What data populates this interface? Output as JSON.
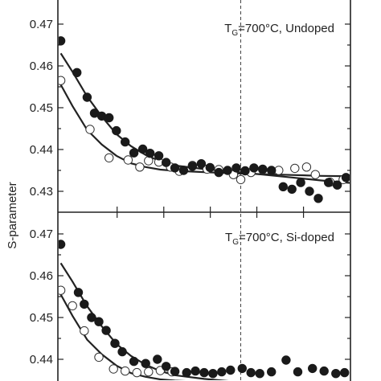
{
  "chart_data": [
    {
      "type": "scatter",
      "panel": "top",
      "annotation": {
        "prefix": "T",
        "sub": "G",
        "suffix": "=700°C, Undoped"
      },
      "ylabel": "S-parameter",
      "ylim": [
        0.425,
        0.4735
      ],
      "yticks": [
        "0.43",
        "0.44",
        "0.45",
        "0.46",
        "0.47"
      ],
      "yticks_values": [
        0.43,
        0.44,
        0.45,
        0.46,
        0.47
      ],
      "xlim": [
        0,
        20
      ],
      "x_minor_ticks": [
        4.05,
        7.24,
        10.42,
        13.6,
        16.79
      ],
      "vline_x": 12.5,
      "series": [
        {
          "marker": "open",
          "points": [
            [
              0.2,
              0.4565
            ],
            [
              2.2,
              0.4448
            ],
            [
              3.5,
              0.438
            ],
            [
              4.8,
              0.4375
            ],
            [
              5.6,
              0.4358
            ],
            [
              6.2,
              0.4373
            ],
            [
              6.9,
              0.437
            ],
            [
              7.7,
              0.4358
            ],
            [
              8.3,
              0.4348
            ],
            [
              9.2,
              0.4362
            ],
            [
              10.2,
              0.4353
            ],
            [
              11.0,
              0.4352
            ],
            [
              12.0,
              0.434
            ],
            [
              12.5,
              0.4328
            ],
            [
              13.2,
              0.4345
            ],
            [
              14.0,
              0.4352
            ],
            [
              15.1,
              0.435
            ],
            [
              16.2,
              0.4355
            ],
            [
              17.0,
              0.4358
            ],
            [
              17.6,
              0.434
            ],
            [
              18.6,
              0.4322
            ],
            [
              19.5,
              0.4328
            ]
          ],
          "fit": [
            [
              0.2,
              0.4555
            ],
            [
              1,
              0.4504
            ],
            [
              2,
              0.4447
            ],
            [
              3,
              0.4412
            ],
            [
              4,
              0.4385
            ],
            [
              5,
              0.4367
            ],
            [
              6,
              0.4358
            ],
            [
              7,
              0.4352
            ],
            [
              8,
              0.4349
            ],
            [
              10,
              0.4346
            ],
            [
              12,
              0.4343
            ],
            [
              14,
              0.4341
            ],
            [
              16,
              0.4339
            ],
            [
              18,
              0.4337
            ],
            [
              20,
              0.4336
            ]
          ]
        },
        {
          "marker": "filled",
          "points": [
            [
              0.2,
              0.466
            ],
            [
              1.3,
              0.4584
            ],
            [
              2.0,
              0.4525
            ],
            [
              2.5,
              0.4487
            ],
            [
              3.0,
              0.448
            ],
            [
              3.5,
              0.4476
            ],
            [
              4.0,
              0.4445
            ],
            [
              4.6,
              0.4418
            ],
            [
              5.2,
              0.4392
            ],
            [
              5.8,
              0.4401
            ],
            [
              6.3,
              0.4391
            ],
            [
              6.9,
              0.4385
            ],
            [
              7.4,
              0.4369
            ],
            [
              8.0,
              0.4356
            ],
            [
              8.6,
              0.435
            ],
            [
              9.2,
              0.436
            ],
            [
              9.8,
              0.4366
            ],
            [
              10.4,
              0.4357
            ],
            [
              11.0,
              0.4345
            ],
            [
              11.6,
              0.435
            ],
            [
              12.2,
              0.4356
            ],
            [
              12.8,
              0.4349
            ],
            [
              13.4,
              0.4356
            ],
            [
              14.0,
              0.4353
            ],
            [
              14.6,
              0.435
            ],
            [
              15.4,
              0.4311
            ],
            [
              16.0,
              0.4305
            ],
            [
              16.6,
              0.4321
            ],
            [
              17.2,
              0.43
            ],
            [
              17.8,
              0.4283
            ],
            [
              18.5,
              0.4321
            ],
            [
              19.1,
              0.4315
            ],
            [
              19.7,
              0.4333
            ]
          ],
          "fit": [
            [
              0.2,
              0.463
            ],
            [
              1,
              0.4586
            ],
            [
              2,
              0.4527
            ],
            [
              3,
              0.4479
            ],
            [
              4,
              0.4437
            ],
            [
              5,
              0.4408
            ],
            [
              6,
              0.4387
            ],
            [
              7,
              0.4372
            ],
            [
              8,
              0.4362
            ],
            [
              10,
              0.4353
            ],
            [
              12,
              0.4347
            ],
            [
              14,
              0.434
            ],
            [
              16,
              0.4333
            ],
            [
              18,
              0.4326
            ],
            [
              20,
              0.432
            ]
          ]
        }
      ]
    },
    {
      "type": "scatter",
      "panel": "bottom",
      "annotation": {
        "prefix": "T",
        "sub": "G",
        "suffix": "=700°C, Si-doped"
      },
      "ylim": [
        0.4325,
        0.4735
      ],
      "yticks": [
        "0.44",
        "0.45",
        "0.46",
        "0.47"
      ],
      "yticks_values": [
        0.44,
        0.45,
        0.46,
        0.47
      ],
      "xlim": [
        0,
        20
      ],
      "x_minor_ticks": [
        4.05,
        7.24,
        10.42,
        13.6,
        16.79
      ],
      "vline_x": 12.5,
      "series": [
        {
          "marker": "open",
          "points": [
            [
              0.2,
              0.4565
            ],
            [
              1.0,
              0.4528
            ],
            [
              1.8,
              0.4468
            ],
            [
              2.8,
              0.4405
            ],
            [
              3.8,
              0.4377
            ],
            [
              4.6,
              0.4372
            ],
            [
              5.4,
              0.4368
            ],
            [
              6.2,
              0.437
            ],
            [
              7.0,
              0.4373
            ],
            [
              7.8,
              0.437
            ]
          ],
          "fit": [
            [
              0.2,
              0.4555
            ],
            [
              1,
              0.4504
            ],
            [
              2,
              0.4447
            ],
            [
              3,
              0.4412
            ],
            [
              4,
              0.4385
            ],
            [
              5,
              0.4367
            ],
            [
              6,
              0.4358
            ],
            [
              7,
              0.4352
            ],
            [
              8,
              0.4349
            ],
            [
              10,
              0.4346
            ],
            [
              12,
              0.4343
            ],
            [
              14,
              0.4341
            ],
            [
              16,
              0.4339
            ],
            [
              18,
              0.4337
            ],
            [
              20,
              0.4336
            ]
          ]
        },
        {
          "marker": "filled",
          "points": [
            [
              0.2,
              0.4675
            ],
            [
              1.4,
              0.456
            ],
            [
              1.8,
              0.4532
            ],
            [
              2.3,
              0.45
            ],
            [
              2.8,
              0.449
            ],
            [
              3.3,
              0.4469
            ],
            [
              3.9,
              0.4438
            ],
            [
              4.4,
              0.4418
            ],
            [
              5.2,
              0.4395
            ],
            [
              6.0,
              0.439
            ],
            [
              6.8,
              0.44
            ],
            [
              7.4,
              0.4383
            ],
            [
              8.0,
              0.4371
            ],
            [
              8.8,
              0.4368
            ],
            [
              9.4,
              0.4372
            ],
            [
              10.0,
              0.4368
            ],
            [
              10.6,
              0.4366
            ],
            [
              11.2,
              0.437
            ],
            [
              11.8,
              0.4374
            ],
            [
              12.6,
              0.4378
            ],
            [
              13.2,
              0.4368
            ],
            [
              13.8,
              0.4366
            ],
            [
              14.6,
              0.437
            ],
            [
              15.6,
              0.4398
            ],
            [
              16.4,
              0.437
            ],
            [
              17.4,
              0.4378
            ],
            [
              18.2,
              0.4372
            ],
            [
              19.0,
              0.4366
            ],
            [
              19.6,
              0.4368
            ]
          ],
          "fit": [
            [
              0.2,
              0.463
            ],
            [
              1,
              0.4586
            ],
            [
              2,
              0.4527
            ],
            [
              3,
              0.4479
            ],
            [
              4,
              0.4437
            ],
            [
              5,
              0.4408
            ],
            [
              6,
              0.4387
            ],
            [
              7,
              0.4372
            ],
            [
              8,
              0.4362
            ],
            [
              10,
              0.4353
            ],
            [
              12,
              0.4347
            ],
            [
              14,
              0.434
            ],
            [
              16,
              0.4333
            ],
            [
              18,
              0.4326
            ],
            [
              20,
              0.432
            ]
          ]
        }
      ]
    }
  ]
}
